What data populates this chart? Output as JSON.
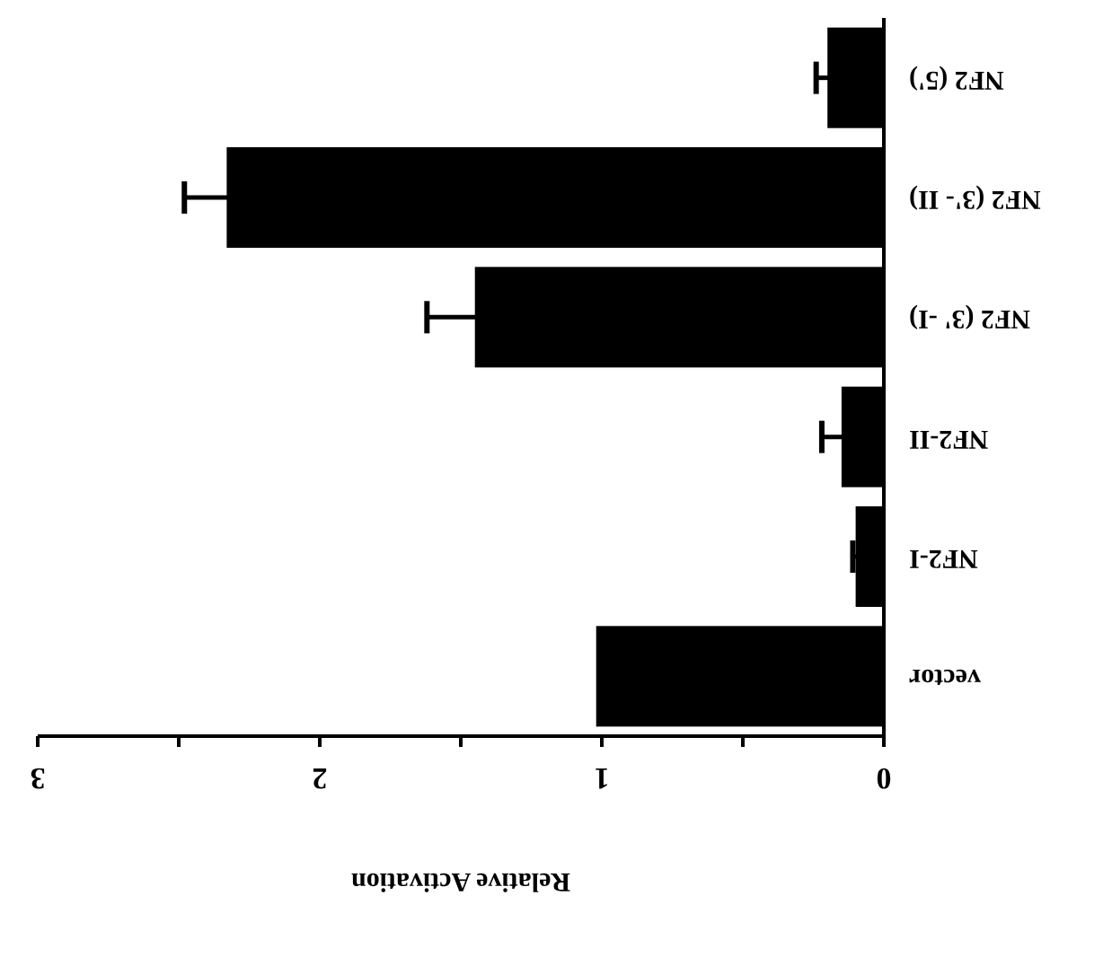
{
  "chart_data": {
    "type": "bar",
    "orientation": "horizontal",
    "xlabel": "Relative Activation",
    "categories": [
      "NF2 (5')",
      "NF2 (3'- II)",
      "NF2 (3' -I)",
      "NF2-II",
      "NF2-I",
      "vector"
    ],
    "values": [
      0.2,
      2.33,
      1.45,
      0.15,
      0.1,
      1.02
    ],
    "errors": [
      0.04,
      0.15,
      0.17,
      0.07,
      0.01,
      null
    ],
    "color": "#000000",
    "xlim": [
      3,
      0
    ],
    "xticks": [
      3,
      {
        "value": 2.5,
        "label": null
      },
      2,
      {
        "value": 1.5,
        "label": null
      },
      1,
      {
        "value": 0.5,
        "label": null
      },
      0
    ]
  }
}
